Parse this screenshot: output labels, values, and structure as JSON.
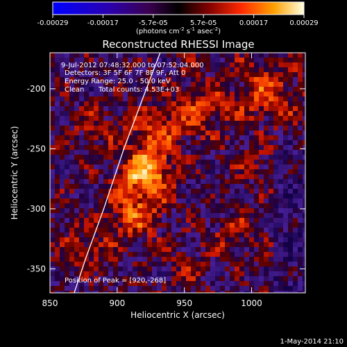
{
  "chart_data": {
    "type": "heatmap",
    "title": "Reconstructed RHESSI Image",
    "xlabel": "Heliocentric X (arcsec)",
    "ylabel": "Heliocentric Y (arcsec)",
    "xlim": [
      850,
      1040
    ],
    "ylim": [
      -370,
      -170
    ],
    "x_ticks": [
      850,
      900,
      950,
      1000
    ],
    "y_ticks": [
      -200,
      -250,
      -300,
      -350
    ],
    "colorbar": {
      "ticks": [
        "-0.00029",
        "-0.00017",
        "-5.7e-05",
        "5.7e-05",
        "0.00017",
        "0.00029"
      ],
      "unit_prefix": "(photons cm",
      "unit_sup1": "-2",
      "unit_mid": " s",
      "unit_sup2": "-1",
      "unit_mid2": " asec",
      "unit_sup3": "-2",
      "unit_suffix": ")"
    },
    "annotations": {
      "time_range": "9-Jul-2012 07:48:32.000 to 07:52:04.000",
      "detectors": "Detectors: 3F 5F 6F 7F 8F 9F, Att 0",
      "energy": "Energy Range: 25.0 - 50.0 keV",
      "method": "Clean",
      "counts": "Total counts: 4.53E+03",
      "peak": "Position of Peak = [920,-268]"
    },
    "peak": [
      920,
      -268
    ],
    "limb_curve": [
      [
        868,
        -370
      ],
      [
        877,
        -340
      ],
      [
        890,
        -300
      ],
      [
        905,
        -250
      ],
      [
        920,
        -205
      ],
      [
        932,
        -170
      ]
    ]
  },
  "footer": {
    "date": "1-May-2014 21:10"
  }
}
